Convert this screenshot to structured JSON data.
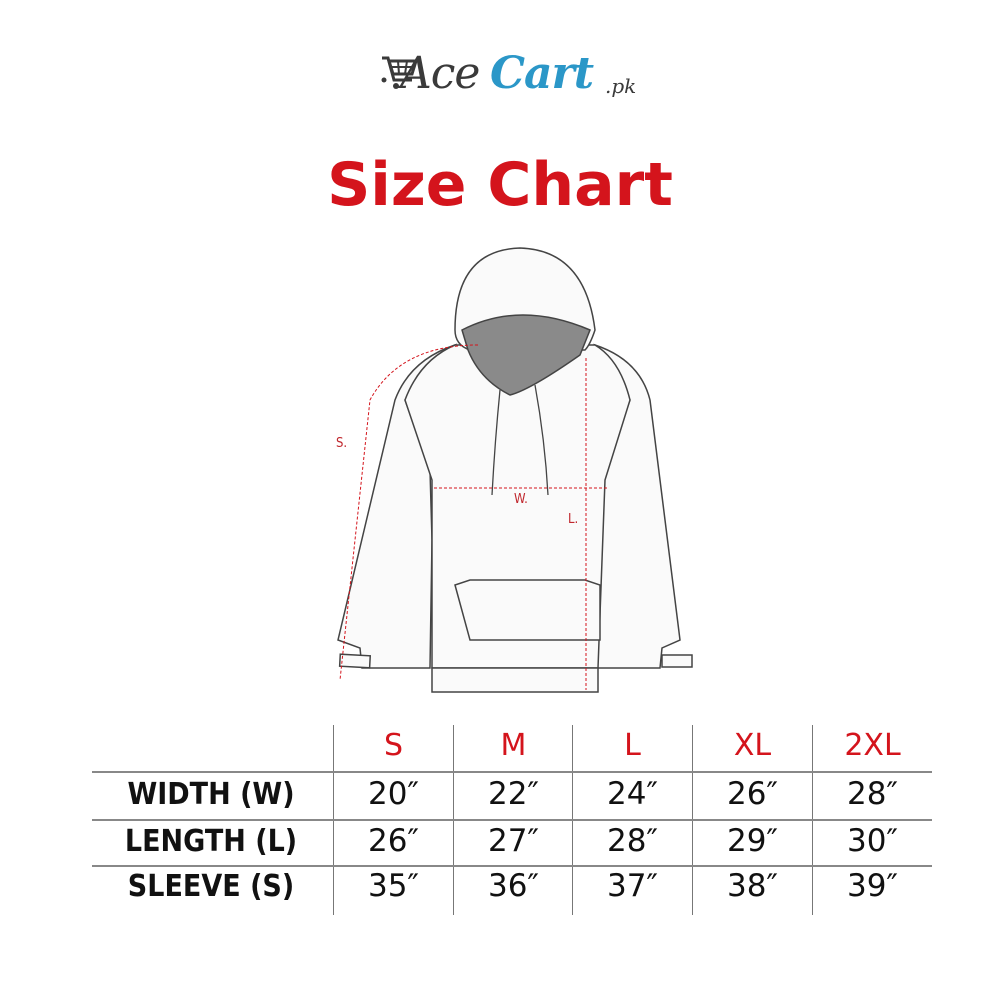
{
  "logo": {
    "part1": "Ace",
    "part2": "Cart",
    "suffix": ".pk",
    "icon": "shopping-cart-icon",
    "colors": {
      "dark": "#3a3a3a",
      "blue": "#2b97c8"
    }
  },
  "title": "Size Chart",
  "accent_color": "#d4141c",
  "diagram": {
    "labels": {
      "sleeve": "S.",
      "width": "W.",
      "length": "L."
    }
  },
  "table": {
    "sizes": [
      "S",
      "M",
      "L",
      "XL",
      "2XL"
    ],
    "rows": [
      {
        "label": "WIDTH (W)",
        "values": [
          "20″",
          "22″",
          "24″",
          "26″",
          "28″"
        ]
      },
      {
        "label": "LENGTH (L)",
        "values": [
          "26″",
          "27″",
          "28″",
          "29″",
          "30″"
        ]
      },
      {
        "label": "SLEEVE (S)",
        "values": [
          "35″",
          "36″",
          "37″",
          "38″",
          "39″"
        ]
      }
    ]
  }
}
